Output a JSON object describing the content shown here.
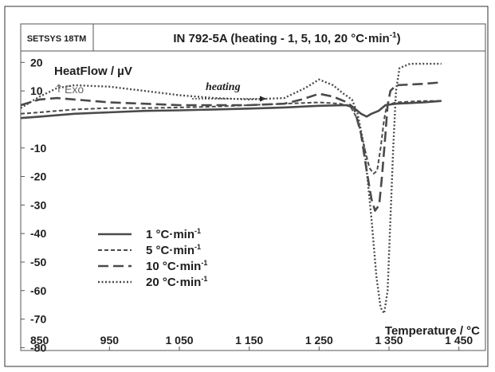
{
  "chart_data": {
    "type": "line",
    "instrument_label": "SETSYS 18TM",
    "title": "IN 792-5A (heating - 1, 5, 10, 20 °C·min",
    "title_superscript": "-1",
    "title_close": ")",
    "ylabel": "HeatFlow / µV",
    "exo_label": "Exo",
    "xlabel": "Temperature / °C",
    "annotation": "heating",
    "xlim": [
      823,
      1488
    ],
    "ylim": [
      -81,
      24
    ],
    "x_ticks": [
      850,
      950,
      1050,
      1150,
      1250,
      1350,
      1450
    ],
    "x_tick_labels": [
      "850",
      "950",
      "1 050",
      "1 150",
      "1 250",
      "1 350",
      "1 450"
    ],
    "y_ticks": [
      20,
      10,
      -10,
      -20,
      -30,
      -40,
      -50,
      -60,
      -70,
      -80
    ],
    "y_tick_labels": [
      "20",
      "10",
      "-10",
      "-20",
      "-30",
      "-40",
      "-50",
      "-60",
      "-70",
      "-80"
    ],
    "grid": false,
    "legend_position": "bottom-left",
    "series": [
      {
        "name": "1 °C·min",
        "name_superscript": "-1",
        "style": "solid",
        "color": "#4a4a4a",
        "points": [
          [
            823,
            0.5
          ],
          [
            850,
            1
          ],
          [
            900,
            2
          ],
          [
            950,
            2.5
          ],
          [
            1000,
            3
          ],
          [
            1050,
            3.2
          ],
          [
            1100,
            3.5
          ],
          [
            1150,
            3.8
          ],
          [
            1200,
            4.2
          ],
          [
            1250,
            4.8
          ],
          [
            1290,
            5
          ],
          [
            1300,
            4
          ],
          [
            1310,
            2
          ],
          [
            1318,
            1
          ],
          [
            1325,
            2
          ],
          [
            1335,
            3
          ],
          [
            1345,
            5
          ],
          [
            1360,
            5.5
          ],
          [
            1400,
            6
          ],
          [
            1425,
            6.5
          ]
        ]
      },
      {
        "name": "5 °C·min",
        "name_superscript": "-1",
        "style": "dashed",
        "color": "#4a4a4a",
        "points": [
          [
            823,
            2
          ],
          [
            850,
            2.5
          ],
          [
            900,
            3.5
          ],
          [
            950,
            4
          ],
          [
            1000,
            4
          ],
          [
            1050,
            4.2
          ],
          [
            1100,
            4.5
          ],
          [
            1150,
            5
          ],
          [
            1200,
            5.5
          ],
          [
            1250,
            6
          ],
          [
            1280,
            5.5
          ],
          [
            1295,
            4.5
          ],
          [
            1305,
            0
          ],
          [
            1315,
            -10
          ],
          [
            1322,
            -17
          ],
          [
            1328,
            -19
          ],
          [
            1333,
            -18
          ],
          [
            1338,
            -10
          ],
          [
            1343,
            0
          ],
          [
            1347,
            5
          ],
          [
            1360,
            6
          ],
          [
            1400,
            6.5
          ],
          [
            1425,
            6.5
          ]
        ]
      },
      {
        "name": "10 °C·min",
        "name_superscript": "-1",
        "style": "longdash",
        "color": "#4a4a4a",
        "points": [
          [
            823,
            5
          ],
          [
            850,
            7
          ],
          [
            875,
            7.5
          ],
          [
            900,
            7
          ],
          [
            950,
            6
          ],
          [
            1000,
            5.5
          ],
          [
            1050,
            5
          ],
          [
            1100,
            5
          ],
          [
            1150,
            5
          ],
          [
            1200,
            5.5
          ],
          [
            1225,
            7
          ],
          [
            1250,
            9
          ],
          [
            1270,
            8
          ],
          [
            1290,
            6
          ],
          [
            1300,
            4
          ],
          [
            1310,
            -5
          ],
          [
            1318,
            -18
          ],
          [
            1325,
            -28
          ],
          [
            1330,
            -32
          ],
          [
            1336,
            -30
          ],
          [
            1340,
            -20
          ],
          [
            1345,
            -5
          ],
          [
            1348,
            5
          ],
          [
            1352,
            10
          ],
          [
            1360,
            12
          ],
          [
            1400,
            12.5
          ],
          [
            1425,
            13
          ]
        ]
      },
      {
        "name": "20 °C·min",
        "name_superscript": "-1",
        "style": "dotted",
        "color": "#4a4a4a",
        "points": [
          [
            823,
            4
          ],
          [
            850,
            8
          ],
          [
            875,
            11
          ],
          [
            900,
            12
          ],
          [
            950,
            11.5
          ],
          [
            1000,
            10
          ],
          [
            1050,
            8.5
          ],
          [
            1100,
            7.5
          ],
          [
            1150,
            7
          ],
          [
            1200,
            7.5
          ],
          [
            1230,
            11
          ],
          [
            1250,
            14
          ],
          [
            1270,
            12
          ],
          [
            1285,
            9
          ],
          [
            1297,
            7
          ],
          [
            1305,
            2
          ],
          [
            1315,
            -10
          ],
          [
            1325,
            -35
          ],
          [
            1332,
            -55
          ],
          [
            1338,
            -66
          ],
          [
            1343,
            -68
          ],
          [
            1348,
            -60
          ],
          [
            1352,
            -35
          ],
          [
            1356,
            -10
          ],
          [
            1360,
            10
          ],
          [
            1365,
            18
          ],
          [
            1380,
            19.5
          ],
          [
            1425,
            19.5
          ]
        ]
      }
    ]
  }
}
